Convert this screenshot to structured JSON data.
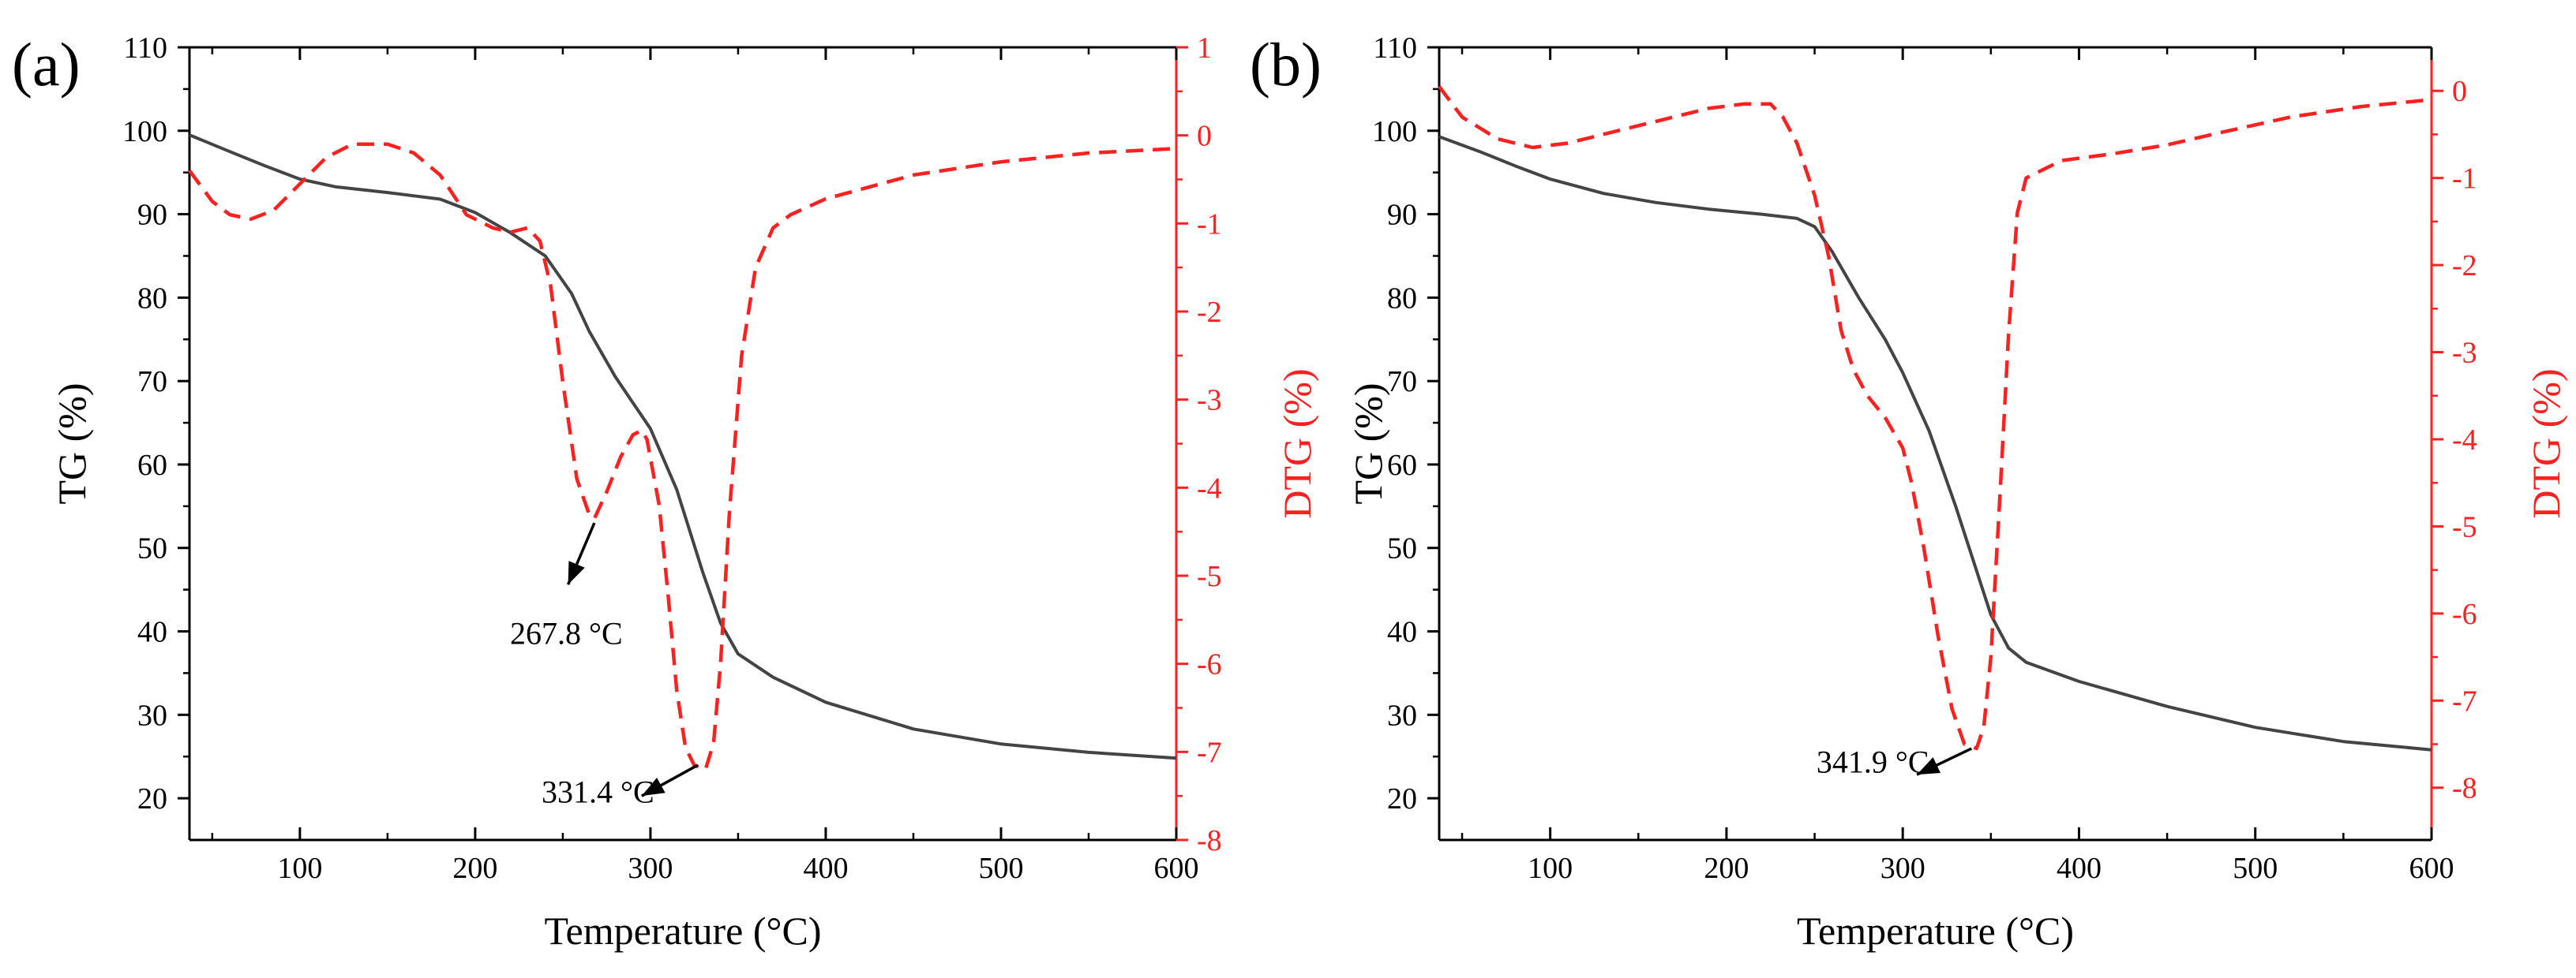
{
  "figure": {
    "background": "#ffffff"
  },
  "chart_data": [
    {
      "panel_label": "(a)",
      "type": "line",
      "xlabel": "Temperature (°C)",
      "ylabel_left": "TG (%)",
      "ylabel_right": "DTG (%)",
      "xlim": [
        37,
        600
      ],
      "ylim_left": [
        15,
        110
      ],
      "ylim_right": [
        -8,
        1
      ],
      "x_ticks": [
        100,
        200,
        300,
        400,
        500,
        600
      ],
      "y_left_ticks": [
        20,
        30,
        40,
        50,
        60,
        70,
        80,
        90,
        100,
        110
      ],
      "y_right_ticks": [
        -8,
        -7,
        -6,
        -5,
        -4,
        -3,
        -2,
        -1,
        0,
        1
      ],
      "grid": false,
      "colors": {
        "TG": "#444444",
        "DTG": "#ff2020",
        "axis": "#000000"
      },
      "series": [
        {
          "name": "TG",
          "axis": "left",
          "style": "solid",
          "x": [
            37,
            60,
            80,
            100,
            120,
            150,
            180,
            200,
            220,
            240,
            255,
            265,
            280,
            300,
            315,
            330,
            340,
            350,
            370,
            400,
            450,
            500,
            550,
            600
          ],
          "y": [
            99.5,
            97.5,
            95.8,
            94.2,
            93.3,
            92.6,
            91.8,
            90.2,
            87.8,
            85,
            80.5,
            76,
            70.5,
            64.3,
            57,
            47,
            41,
            37.3,
            34.5,
            31.5,
            28.3,
            26.5,
            25.5,
            24.8
          ]
        },
        {
          "name": "DTG",
          "axis": "right",
          "style": "dashed",
          "x": [
            37,
            50,
            60,
            72,
            85,
            100,
            115,
            130,
            150,
            165,
            180,
            195,
            210,
            220,
            230,
            237,
            243,
            250,
            258,
            265,
            268,
            275,
            283,
            290,
            295,
            298,
            305,
            310,
            315,
            320,
            325,
            331.4,
            336,
            340,
            345,
            352,
            360,
            370,
            380,
            400,
            450,
            500,
            550,
            600
          ],
          "y": [
            -0.4,
            -0.75,
            -0.9,
            -0.95,
            -0.85,
            -0.55,
            -0.25,
            -0.1,
            -0.1,
            -0.2,
            -0.45,
            -0.9,
            -1.05,
            -1.1,
            -1.05,
            -1.2,
            -1.7,
            -2.8,
            -3.9,
            -4.3,
            -4.35,
            -4.05,
            -3.65,
            -3.4,
            -3.35,
            -3.45,
            -4.2,
            -5.2,
            -6.3,
            -6.95,
            -7.15,
            -7.2,
            -6.9,
            -6.0,
            -4.3,
            -2.5,
            -1.5,
            -1.05,
            -0.9,
            -0.72,
            -0.45,
            -0.3,
            -0.2,
            -0.15
          ]
        }
      ],
      "annotations": [
        {
          "text": "267.8 °C",
          "peak": [
            267.8,
            -4.3
          ],
          "label_at": [
            252,
            -5.65
          ],
          "arrow_tail": [
            268,
            -4.4
          ],
          "arrow_head": [
            253,
            -5.1
          ]
        },
        {
          "text": "331.4 °C",
          "peak": [
            331.4,
            -7.15
          ],
          "label_at": [
            270,
            -7.45
          ],
          "arrow_tail": [
            327,
            -7.15
          ],
          "arrow_head": [
            295,
            -7.5
          ]
        }
      ]
    },
    {
      "panel_label": "(b)",
      "type": "line",
      "xlabel": "Temperature (°C)",
      "ylabel_left": "TG (%)",
      "ylabel_right": "DTG (%)",
      "xlim": [
        37,
        600
      ],
      "ylim_left": [
        15,
        110
      ],
      "ylim_right": [
        -8.6,
        0.5
      ],
      "x_ticks": [
        100,
        200,
        300,
        400,
        500,
        600
      ],
      "y_left_ticks": [
        20,
        30,
        40,
        50,
        60,
        70,
        80,
        90,
        100,
        110
      ],
      "y_right_ticks": [
        -8,
        -7,
        -6,
        -5,
        -4,
        -3,
        -2,
        -1,
        0
      ],
      "grid": false,
      "colors": {
        "TG": "#444444",
        "DTG": "#ff2020",
        "axis": "#000000"
      },
      "series": [
        {
          "name": "TG",
          "axis": "left",
          "style": "solid",
          "x": [
            37,
            60,
            80,
            100,
            130,
            160,
            190,
            220,
            240,
            250,
            260,
            275,
            290,
            300,
            315,
            330,
            340,
            350,
            360,
            370,
            400,
            450,
            500,
            550,
            600
          ],
          "y": [
            99.3,
            97.5,
            95.8,
            94.2,
            92.5,
            91.4,
            90.6,
            90,
            89.5,
            88.5,
            85.5,
            80,
            75,
            71,
            64,
            55,
            48.5,
            42,
            38,
            36.3,
            34,
            31,
            28.5,
            26.8,
            25.8
          ]
        },
        {
          "name": "DTG",
          "axis": "right",
          "style": "dashed",
          "x": [
            37,
            50,
            70,
            90,
            110,
            130,
            160,
            190,
            210,
            225,
            232,
            240,
            250,
            258,
            265,
            272,
            280,
            290,
            300,
            305,
            312,
            320,
            328,
            335,
            341.9,
            346,
            350,
            355,
            360,
            365,
            370,
            390,
            420,
            450,
            480,
            520,
            560,
            600
          ],
          "y": [
            0.05,
            -0.3,
            -0.55,
            -0.65,
            -0.6,
            -0.5,
            -0.35,
            -0.2,
            -0.15,
            -0.15,
            -0.3,
            -0.6,
            -1.2,
            -1.9,
            -2.75,
            -3.2,
            -3.5,
            -3.75,
            -4.1,
            -4.5,
            -5.25,
            -6.25,
            -7.1,
            -7.5,
            -7.55,
            -7.3,
            -6.5,
            -4.7,
            -2.8,
            -1.4,
            -1.0,
            -0.8,
            -0.72,
            -0.62,
            -0.48,
            -0.3,
            -0.18,
            -0.1
          ]
        }
      ],
      "annotations": [
        {
          "text": "341.9 °C",
          "peak": [
            341.9,
            -7.55
          ],
          "label_at": [
            283,
            -7.7
          ],
          "arrow_tail": [
            339,
            -7.55
          ],
          "arrow_head": [
            308,
            -7.85
          ]
        }
      ]
    }
  ]
}
